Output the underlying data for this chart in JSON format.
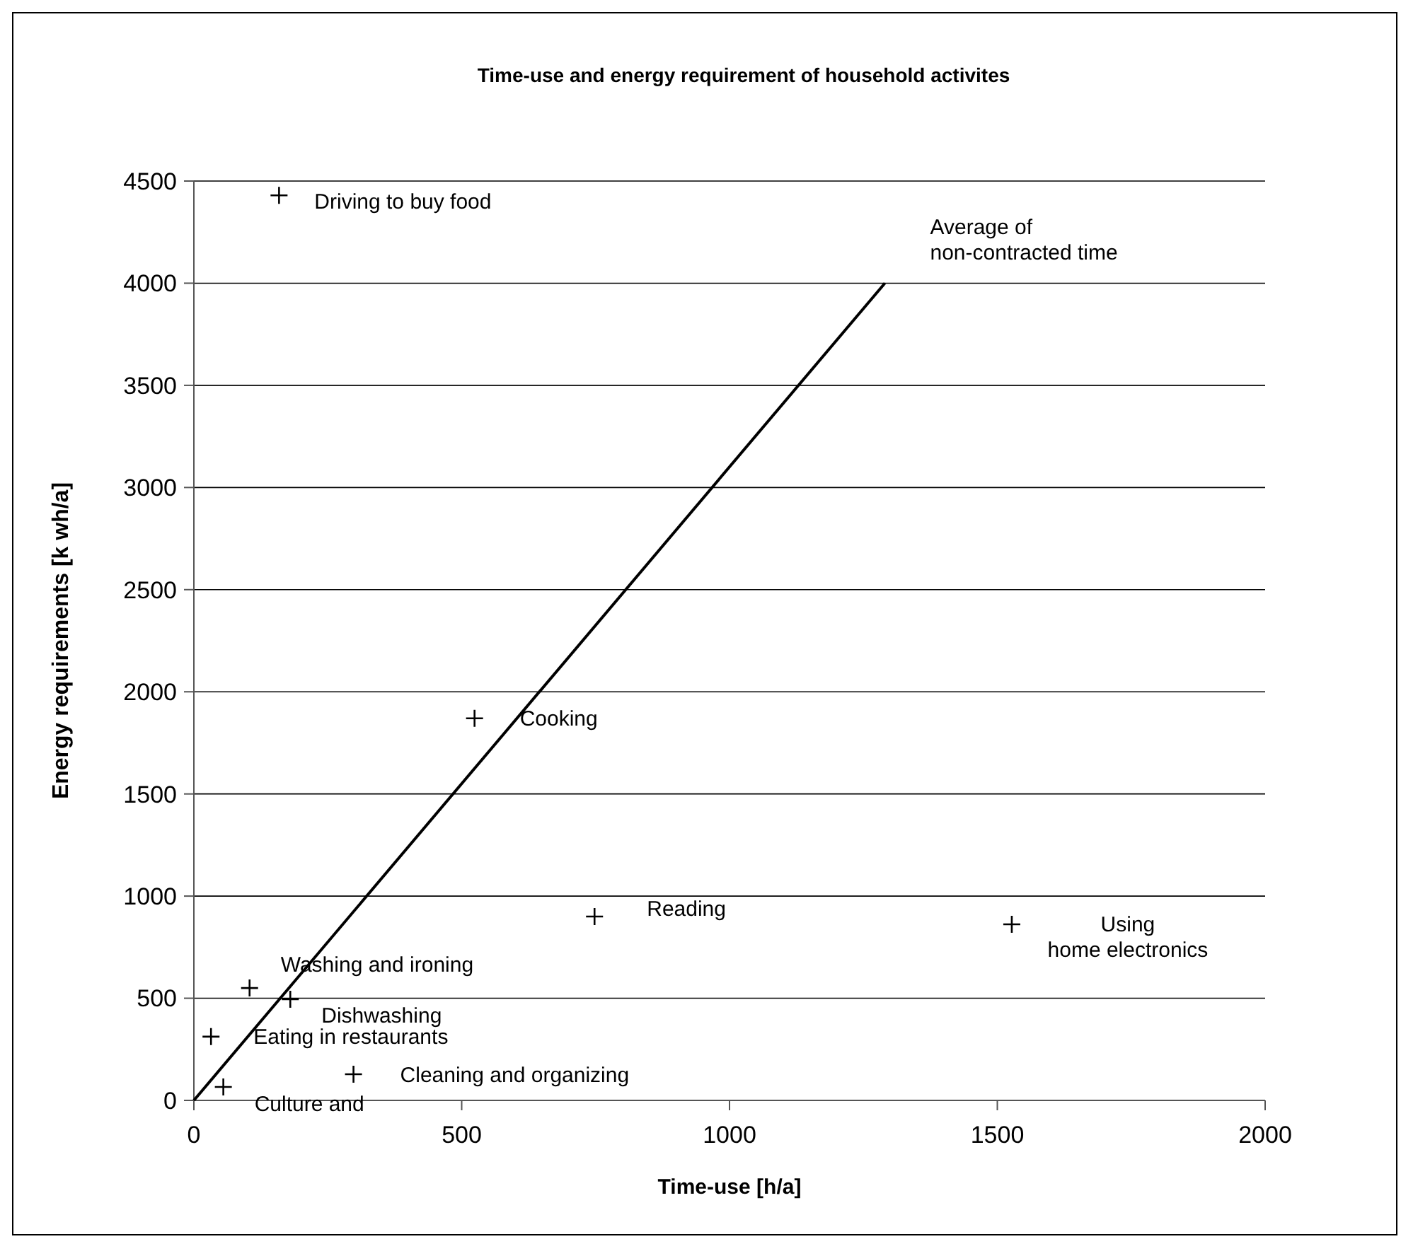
{
  "chart_data": {
    "type": "scatter",
    "title": "Time-use and energy requirement of household activites",
    "xlabel": "Time-use [h/a]",
    "ylabel": "Energy requirements [k wh/a]",
    "xlim": [
      0,
      2000
    ],
    "xticks": [
      0,
      500,
      1000,
      1500,
      2000
    ],
    "ylim": [
      0,
      4500
    ],
    "yticks": [
      0,
      500,
      1000,
      1500,
      2000,
      2500,
      3000,
      3500,
      4000,
      4500
    ],
    "grid": "y",
    "series": [
      {
        "marker": "cross",
        "color": "#000000",
        "x": [
          159,
          524,
          748,
          104,
          180,
          32,
          55,
          298,
          1527
        ],
        "values": [
          4430,
          1870,
          900,
          550,
          495,
          312,
          66,
          128,
          862
        ]
      },
      {
        "type": "line",
        "color": "#000000",
        "x": [
          0,
          1290
        ],
        "values": [
          0,
          4000
        ]
      }
    ],
    "annotations": [
      {
        "text": "Driving to buy food",
        "x": 159,
        "y": 4430
      },
      {
        "text": "Cooking",
        "x": 524,
        "y": 1870
      },
      {
        "text": "Reading",
        "x": 748,
        "y": 900
      },
      {
        "text": "Washing and ironing",
        "x": 104,
        "y": 550
      },
      {
        "text": "Dishwashing",
        "x": 180,
        "y": 495
      },
      {
        "text": "Eating in restaurants",
        "x": 32,
        "y": 312
      },
      {
        "text": "Culture and",
        "x": 55,
        "y": 66
      },
      {
        "text": "Cleaning and organizing",
        "x": 298,
        "y": 128
      },
      {
        "text": "Using\nhome electronics",
        "x": 1527,
        "y": 862
      },
      {
        "text": "Average of\nnon-contracted time",
        "x": 1290,
        "y": 4000
      }
    ]
  }
}
